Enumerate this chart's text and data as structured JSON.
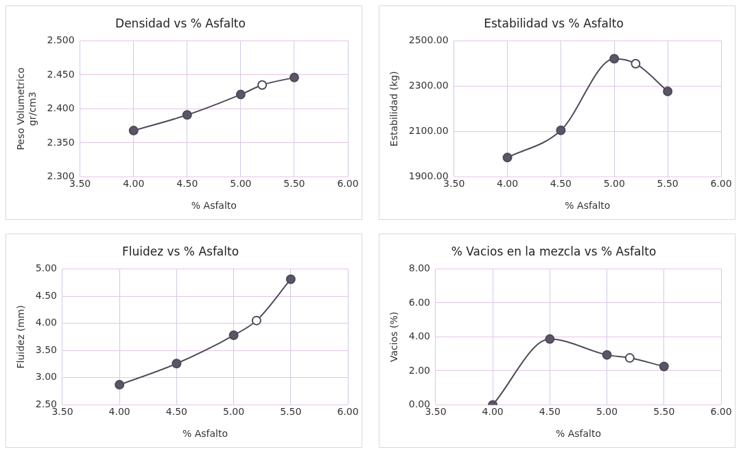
{
  "chart_data": [
    {
      "type": "line",
      "title": "Densidad vs % Asfalto",
      "xlabel": "% Asfalto",
      "ylabel": "Peso Volumetrico\ngr/cm3",
      "x": [
        4.0,
        4.5,
        5.0,
        5.2,
        5.5
      ],
      "series": [
        {
          "color": "#4f4a5a",
          "colors": [
            "#5b5566",
            "#5b5566",
            "#5b5566",
            "#ffffff",
            "#5b5566"
          ],
          "values": [
            2.368,
            2.391,
            2.421,
            2.435,
            2.446
          ]
        }
      ],
      "xlim": [
        3.5,
        6.0
      ],
      "xticks": [
        {
          "value": 3.5,
          "label": "3.50"
        },
        {
          "value": 4.0,
          "label": "4.00"
        },
        {
          "value": 4.5,
          "label": "4.50"
        },
        {
          "value": 5.0,
          "label": "5.00"
        },
        {
          "value": 5.5,
          "label": "5.50"
        },
        {
          "value": 6.0,
          "label": "6.00"
        }
      ],
      "ylim": [
        2.3,
        2.5
      ],
      "yticks": [
        {
          "value": 2.3,
          "label": "2.300"
        },
        {
          "value": 2.35,
          "label": "2.350"
        },
        {
          "value": 2.4,
          "label": "2.400"
        },
        {
          "value": 2.45,
          "label": "2.450"
        },
        {
          "value": 2.5,
          "label": "2.500"
        }
      ],
      "grid": true,
      "marker": "circle"
    },
    {
      "type": "line",
      "title": "Estabilidad vs % Asfalto",
      "xlabel": "% Asfalto",
      "ylabel": "Estabilidad (kg)",
      "x": [
        4.0,
        4.5,
        5.0,
        5.2,
        5.5
      ],
      "series": [
        {
          "color": "#4f4a5a",
          "colors": [
            "#5b5566",
            "#5b5566",
            "#5b5566",
            "#ffffff",
            "#5b5566"
          ],
          "values": [
            1985,
            2105,
            2421,
            2399,
            2277
          ]
        }
      ],
      "xlim": [
        3.5,
        6.0
      ],
      "xticks": [
        {
          "value": 3.5,
          "label": "3.50"
        },
        {
          "value": 4.0,
          "label": "4.00"
        },
        {
          "value": 4.5,
          "label": "4.50"
        },
        {
          "value": 5.0,
          "label": "5.00"
        },
        {
          "value": 5.5,
          "label": "5.50"
        },
        {
          "value": 6.0,
          "label": "6.00"
        }
      ],
      "ylim": [
        1900,
        2500
      ],
      "yticks": [
        {
          "value": 1900,
          "label": "1900.00"
        },
        {
          "value": 2100,
          "label": "2100.00"
        },
        {
          "value": 2300,
          "label": "2300.00"
        },
        {
          "value": 2500,
          "label": "2500.00"
        }
      ],
      "grid": true,
      "marker": "circle"
    },
    {
      "type": "line",
      "title": "Fluidez vs % Asfalto",
      "xlabel": "% Asfalto",
      "ylabel": "Fluidez (mm)",
      "x": [
        4.0,
        4.5,
        5.0,
        5.2,
        5.5
      ],
      "series": [
        {
          "color": "#4f4a5a",
          "colors": [
            "#5b5566",
            "#5b5566",
            "#5b5566",
            "#ffffff",
            "#5b5566"
          ],
          "values": [
            2.87,
            3.26,
            3.78,
            4.05,
            4.81
          ]
        }
      ],
      "xlim": [
        3.5,
        6.0
      ],
      "xticks": [
        {
          "value": 3.5,
          "label": "3.50"
        },
        {
          "value": 4.0,
          "label": "4.00"
        },
        {
          "value": 4.5,
          "label": "4.50"
        },
        {
          "value": 5.0,
          "label": "5.00"
        },
        {
          "value": 5.5,
          "label": "5.50"
        },
        {
          "value": 6.0,
          "label": "6.00"
        }
      ],
      "ylim": [
        2.5,
        5.0
      ],
      "yticks": [
        {
          "value": 2.5,
          "label": "2.50"
        },
        {
          "value": 3.0,
          "label": "3.00"
        },
        {
          "value": 3.5,
          "label": "3.50"
        },
        {
          "value": 4.0,
          "label": "4.00"
        },
        {
          "value": 4.5,
          "label": "4.50"
        },
        {
          "value": 5.0,
          "label": "5.00"
        }
      ],
      "grid": true,
      "marker": "circle"
    },
    {
      "type": "line",
      "title": "% Vacios en la mezcla vs % Asfalto",
      "xlabel": "% Asfalto",
      "ylabel": "Vacios (%)",
      "x": [
        4.0,
        4.5,
        5.0,
        5.2,
        5.5
      ],
      "series": [
        {
          "color": "#4f4a5a",
          "colors": [
            "#5b5566",
            "#5b5566",
            "#5b5566",
            "#ffffff",
            "#5b5566"
          ],
          "values": [
            0.0,
            3.87,
            2.94,
            2.76,
            2.26
          ]
        }
      ],
      "xlim": [
        3.5,
        6.0
      ],
      "xticks": [
        {
          "value": 3.5,
          "label": "3.50"
        },
        {
          "value": 4.0,
          "label": "4.00"
        },
        {
          "value": 4.5,
          "label": "4.50"
        },
        {
          "value": 5.0,
          "label": "5.00"
        },
        {
          "value": 5.5,
          "label": "5.50"
        },
        {
          "value": 6.0,
          "label": "6.00"
        }
      ],
      "ylim": [
        0,
        8
      ],
      "yticks": [
        {
          "value": 0,
          "label": "0.00"
        },
        {
          "value": 2,
          "label": "2.00"
        },
        {
          "value": 4,
          "label": "4.00"
        },
        {
          "value": 6,
          "label": "6.00"
        },
        {
          "value": 8,
          "label": "8.00"
        }
      ],
      "grid": true,
      "marker": "circle"
    }
  ]
}
